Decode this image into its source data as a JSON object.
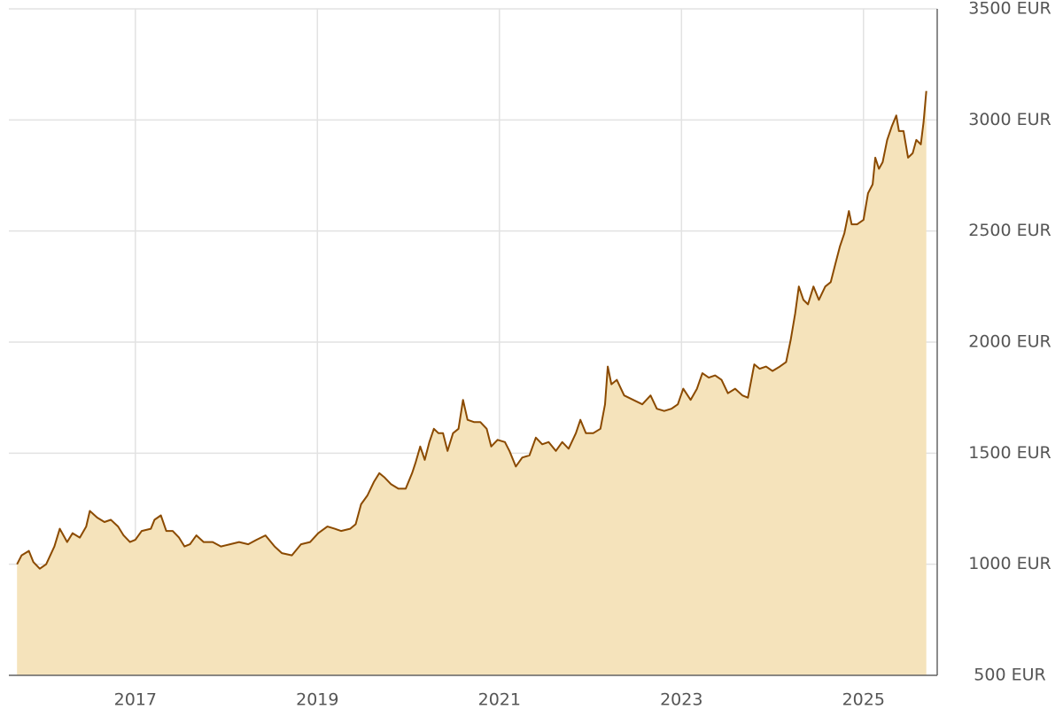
{
  "chart_data": {
    "type": "area",
    "x": [
      2015.7,
      2015.75,
      2015.83,
      2015.88,
      2015.95,
      2016.02,
      2016.11,
      2016.17,
      2016.25,
      2016.31,
      2016.39,
      2016.46,
      2016.5,
      2016.58,
      2016.66,
      2016.73,
      2016.81,
      2016.87,
      2016.94,
      2017.0,
      2017.07,
      2017.17,
      2017.21,
      2017.28,
      2017.34,
      2017.41,
      2017.48,
      2017.54,
      2017.6,
      2017.67,
      2017.75,
      2017.85,
      2017.94,
      2018.04,
      2018.14,
      2018.24,
      2018.33,
      2018.43,
      2018.53,
      2018.61,
      2018.72,
      2018.82,
      2018.92,
      2019.01,
      2019.11,
      2019.19,
      2019.26,
      2019.36,
      2019.42,
      2019.48,
      2019.55,
      2019.62,
      2019.68,
      2019.74,
      2019.81,
      2019.89,
      2019.97,
      2020.04,
      2020.08,
      2020.13,
      2020.18,
      2020.23,
      2020.28,
      2020.33,
      2020.38,
      2020.43,
      2020.49,
      2020.55,
      2020.6,
      2020.65,
      2020.72,
      2020.79,
      2020.86,
      2020.91,
      2020.98,
      2021.06,
      2021.11,
      2021.18,
      2021.25,
      2021.33,
      2021.4,
      2021.47,
      2021.54,
      2021.62,
      2021.69,
      2021.76,
      2021.84,
      2021.89,
      2021.95,
      2022.03,
      2022.11,
      2022.16,
      2022.19,
      2022.23,
      2022.29,
      2022.37,
      2022.47,
      2022.57,
      2022.66,
      2022.73,
      2022.81,
      2022.89,
      2022.96,
      2023.02,
      2023.1,
      2023.17,
      2023.23,
      2023.3,
      2023.37,
      2023.44,
      2023.51,
      2023.59,
      2023.67,
      2023.73,
      2023.8,
      2023.86,
      2023.93,
      2024.0,
      2024.08,
      2024.15,
      2024.2,
      2024.25,
      2024.29,
      2024.34,
      2024.39,
      2024.45,
      2024.51,
      2024.58,
      2024.64,
      2024.69,
      2024.74,
      2024.79,
      2024.84,
      2024.87,
      2024.93,
      2025.0,
      2025.05,
      2025.1,
      2025.13,
      2025.17,
      2025.21,
      2025.26,
      2025.31,
      2025.36,
      2025.39,
      2025.44,
      2025.49,
      2025.54,
      2025.58,
      2025.63,
      2025.66,
      2025.69
    ],
    "series": [
      {
        "color": "#8b4a00",
        "fill_color": "#f5e3bb",
        "values": [
          1000,
          1040,
          1060,
          1010,
          980,
          1000,
          1080,
          1160,
          1100,
          1140,
          1120,
          1170,
          1240,
          1210,
          1190,
          1200,
          1170,
          1130,
          1100,
          1110,
          1150,
          1160,
          1200,
          1220,
          1150,
          1150,
          1120,
          1080,
          1090,
          1130,
          1100,
          1100,
          1080,
          1090,
          1100,
          1090,
          1110,
          1130,
          1080,
          1050,
          1040,
          1090,
          1100,
          1140,
          1170,
          1160,
          1150,
          1160,
          1180,
          1270,
          1310,
          1370,
          1410,
          1390,
          1360,
          1340,
          1340,
          1410,
          1460,
          1530,
          1470,
          1550,
          1610,
          1590,
          1590,
          1510,
          1590,
          1610,
          1740,
          1650,
          1640,
          1640,
          1610,
          1530,
          1560,
          1550,
          1510,
          1440,
          1480,
          1490,
          1570,
          1540,
          1550,
          1510,
          1550,
          1520,
          1590,
          1650,
          1590,
          1590,
          1610,
          1720,
          1890,
          1810,
          1830,
          1760,
          1740,
          1720,
          1760,
          1700,
          1690,
          1700,
          1720,
          1790,
          1740,
          1790,
          1860,
          1840,
          1850,
          1830,
          1770,
          1790,
          1760,
          1750,
          1900,
          1880,
          1890,
          1870,
          1890,
          1910,
          2010,
          2130,
          2250,
          2190,
          2170,
          2250,
          2190,
          2250,
          2270,
          2350,
          2430,
          2490,
          2590,
          2530,
          2530,
          2550,
          2670,
          2710,
          2830,
          2780,
          2810,
          2910,
          2970,
          3020,
          2950,
          2950,
          2830,
          2850,
          2910,
          2890,
          2990,
          3130
        ]
      }
    ],
    "xlim": [
      2015.61,
      2025.81
    ],
    "xticks": [
      2017,
      2019,
      2021,
      2023,
      2025
    ],
    "ylim": [
      500,
      3500
    ],
    "yticks": [
      {
        "value": 500,
        "label": "500 EUR"
      },
      {
        "value": 1000,
        "label": "1000 EUR"
      },
      {
        "value": 1500,
        "label": "1500 EUR"
      },
      {
        "value": 2000,
        "label": "2000 EUR"
      },
      {
        "value": 2500,
        "label": "2500 EUR"
      },
      {
        "value": 3000,
        "label": "3000 EUR"
      },
      {
        "value": 3500,
        "label": "3500 EUR"
      }
    ],
    "grid": true
  }
}
